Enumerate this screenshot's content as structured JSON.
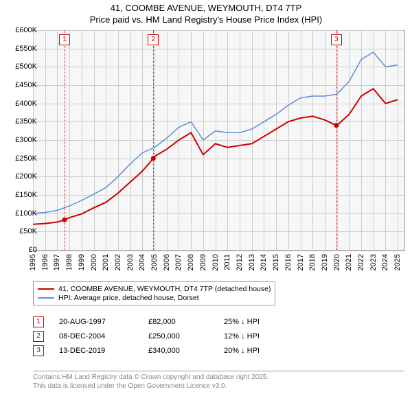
{
  "title_line1": "41, COOMBE AVENUE, WEYMOUTH, DT4 7TP",
  "title_line2": "Price paid vs. HM Land Registry's House Price Index (HPI)",
  "chart": {
    "type": "line",
    "background_color": "#f7f7f7",
    "grid_color": "#cccccc",
    "border_color": "#999999",
    "x_years": [
      1995,
      1996,
      1997,
      1998,
      1999,
      2000,
      2001,
      2002,
      2003,
      2004,
      2005,
      2006,
      2007,
      2008,
      2009,
      2010,
      2011,
      2012,
      2013,
      2014,
      2015,
      2016,
      2017,
      2018,
      2019,
      2020,
      2021,
      2022,
      2023,
      2024,
      2025
    ],
    "xlim": [
      1995,
      2025.5
    ],
    "ylim": [
      0,
      600000
    ],
    "ytick_step": 50000,
    "ytick_labels": [
      "£0",
      "£50K",
      "£100K",
      "£150K",
      "£200K",
      "£250K",
      "£300K",
      "£350K",
      "£400K",
      "£450K",
      "£500K",
      "£550K",
      "£600K"
    ],
    "series": [
      {
        "name": "price_paid",
        "label": "41, COOMBE AVENUE, WEYMOUTH, DT4 7TP (detached house)",
        "color": "#cc0000",
        "line_width": 2,
        "points": [
          [
            1995,
            70000
          ],
          [
            1996,
            72000
          ],
          [
            1997,
            76000
          ],
          [
            1997.6,
            82000
          ],
          [
            1998,
            88000
          ],
          [
            1999,
            98000
          ],
          [
            2000,
            115000
          ],
          [
            2001,
            130000
          ],
          [
            2002,
            155000
          ],
          [
            2003,
            185000
          ],
          [
            2004,
            215000
          ],
          [
            2004.9,
            250000
          ],
          [
            2005,
            255000
          ],
          [
            2006,
            275000
          ],
          [
            2007,
            300000
          ],
          [
            2008,
            320000
          ],
          [
            2009,
            260000
          ],
          [
            2010,
            290000
          ],
          [
            2011,
            280000
          ],
          [
            2012,
            285000
          ],
          [
            2013,
            290000
          ],
          [
            2014,
            310000
          ],
          [
            2015,
            330000
          ],
          [
            2016,
            350000
          ],
          [
            2017,
            360000
          ],
          [
            2018,
            365000
          ],
          [
            2019,
            355000
          ],
          [
            2019.95,
            340000
          ],
          [
            2020,
            340000
          ],
          [
            2021,
            370000
          ],
          [
            2022,
            420000
          ],
          [
            2023,
            440000
          ],
          [
            2024,
            400000
          ],
          [
            2025,
            410000
          ]
        ]
      },
      {
        "name": "hpi",
        "label": "HPI: Average price, detached house, Dorset",
        "color": "#5b8fd6",
        "line_width": 1.5,
        "points": [
          [
            1995,
            100000
          ],
          [
            1996,
            102000
          ],
          [
            1997,
            108000
          ],
          [
            1998,
            120000
          ],
          [
            1999,
            135000
          ],
          [
            2000,
            152000
          ],
          [
            2001,
            170000
          ],
          [
            2002,
            200000
          ],
          [
            2003,
            235000
          ],
          [
            2004,
            265000
          ],
          [
            2005,
            280000
          ],
          [
            2006,
            305000
          ],
          [
            2007,
            335000
          ],
          [
            2008,
            350000
          ],
          [
            2009,
            300000
          ],
          [
            2010,
            325000
          ],
          [
            2011,
            320000
          ],
          [
            2012,
            320000
          ],
          [
            2013,
            330000
          ],
          [
            2014,
            350000
          ],
          [
            2015,
            370000
          ],
          [
            2016,
            395000
          ],
          [
            2017,
            415000
          ],
          [
            2018,
            420000
          ],
          [
            2019,
            420000
          ],
          [
            2020,
            425000
          ],
          [
            2021,
            460000
          ],
          [
            2022,
            520000
          ],
          [
            2023,
            540000
          ],
          [
            2024,
            500000
          ],
          [
            2025,
            505000
          ]
        ]
      }
    ],
    "sale_markers": [
      {
        "num": "1",
        "year": 1997.6,
        "y": 82000,
        "color": "#cc0000"
      },
      {
        "num": "2",
        "year": 2004.9,
        "y": 250000,
        "color": "#cc0000"
      },
      {
        "num": "3",
        "year": 2019.95,
        "y": 340000,
        "color": "#cc0000"
      }
    ]
  },
  "legend": {
    "items": [
      {
        "color": "#cc0000",
        "thick": 2,
        "label": "41, COOMBE AVENUE, WEYMOUTH, DT4 7TP (detached house)"
      },
      {
        "color": "#5b8fd6",
        "thick": 1.5,
        "label": "HPI: Average price, detached house, Dorset"
      }
    ]
  },
  "events": [
    {
      "num": "1",
      "date": "20-AUG-1997",
      "price": "£82,000",
      "delta": "25% ↓ HPI"
    },
    {
      "num": "2",
      "date": "08-DEC-2004",
      "price": "£250,000",
      "delta": "12% ↓ HPI"
    },
    {
      "num": "3",
      "date": "13-DEC-2019",
      "price": "£340,000",
      "delta": "20% ↓ HPI"
    }
  ],
  "footer_line1": "Contains HM Land Registry data © Crown copyright and database right 2025.",
  "footer_line2": "This data is licensed under the Open Government Licence v3.0."
}
